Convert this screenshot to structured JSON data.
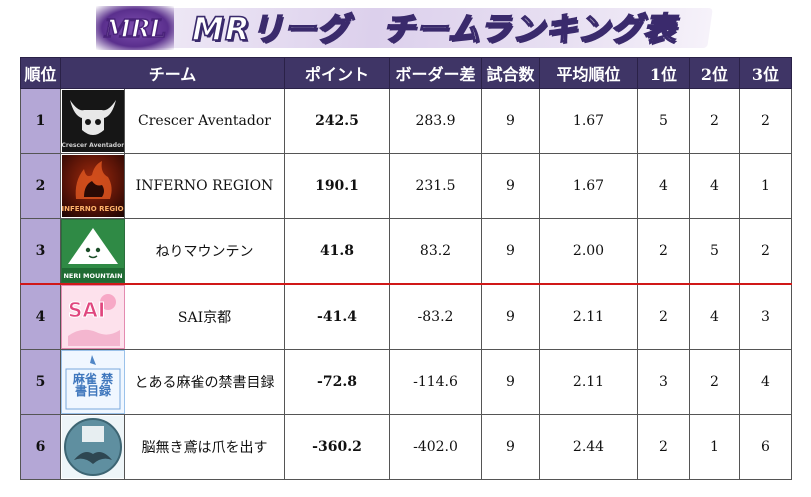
{
  "header": {
    "logo_text": "MRL",
    "title": "MRリーグ　チームランキング表"
  },
  "columns": [
    "順位",
    "チーム",
    "ポイント",
    "ボーダー差",
    "試合数",
    "平均順位",
    "1位",
    "2位",
    "3位"
  ],
  "teams": [
    {
      "rank": "1",
      "name": "Crescer Aventador",
      "points": "242.5",
      "border_diff": "283.9",
      "games": "9",
      "avg_rank": "1.67",
      "first": "5",
      "second": "2",
      "third": "2",
      "logo_icon": "bull-skull-logo",
      "logo_text": "Crescer Aventador"
    },
    {
      "rank": "2",
      "name": "INFERNO REGION",
      "points": "190.1",
      "border_diff": "231.5",
      "games": "9",
      "avg_rank": "1.67",
      "first": "4",
      "second": "4",
      "third": "1",
      "logo_icon": "flame-demon-logo",
      "logo_text": "INFERNO REGION"
    },
    {
      "rank": "3",
      "name": "ねりマウンテン",
      "points": "41.8",
      "border_diff": "83.2",
      "games": "9",
      "avg_rank": "2.00",
      "first": "2",
      "second": "5",
      "third": "2",
      "logo_icon": "mountain-face-logo",
      "logo_text": "NERI MOUNTAIN"
    },
    {
      "rank": "4",
      "name": "SAI京都",
      "points": "-41.4",
      "border_diff": "-83.2",
      "games": "9",
      "avg_rank": "2.11",
      "first": "2",
      "second": "4",
      "third": "3",
      "logo_icon": "sai-kyoto-logo",
      "logo_text": "SAI"
    },
    {
      "rank": "5",
      "name": "とある麻雀の禁書目録",
      "points": "-72.8",
      "border_diff": "-114.6",
      "games": "9",
      "avg_rank": "2.11",
      "first": "3",
      "second": "2",
      "third": "4",
      "logo_icon": "mahjong-index-logo",
      "logo_text": "麻雀 禁書目録"
    },
    {
      "rank": "6",
      "name": "脳無き鳶は爪を出す",
      "points": "-360.2",
      "border_diff": "-402.0",
      "games": "9",
      "avg_rank": "2.44",
      "first": "2",
      "second": "1",
      "third": "6",
      "logo_icon": "hawk-emblem-logo",
      "logo_text": ""
    }
  ]
}
